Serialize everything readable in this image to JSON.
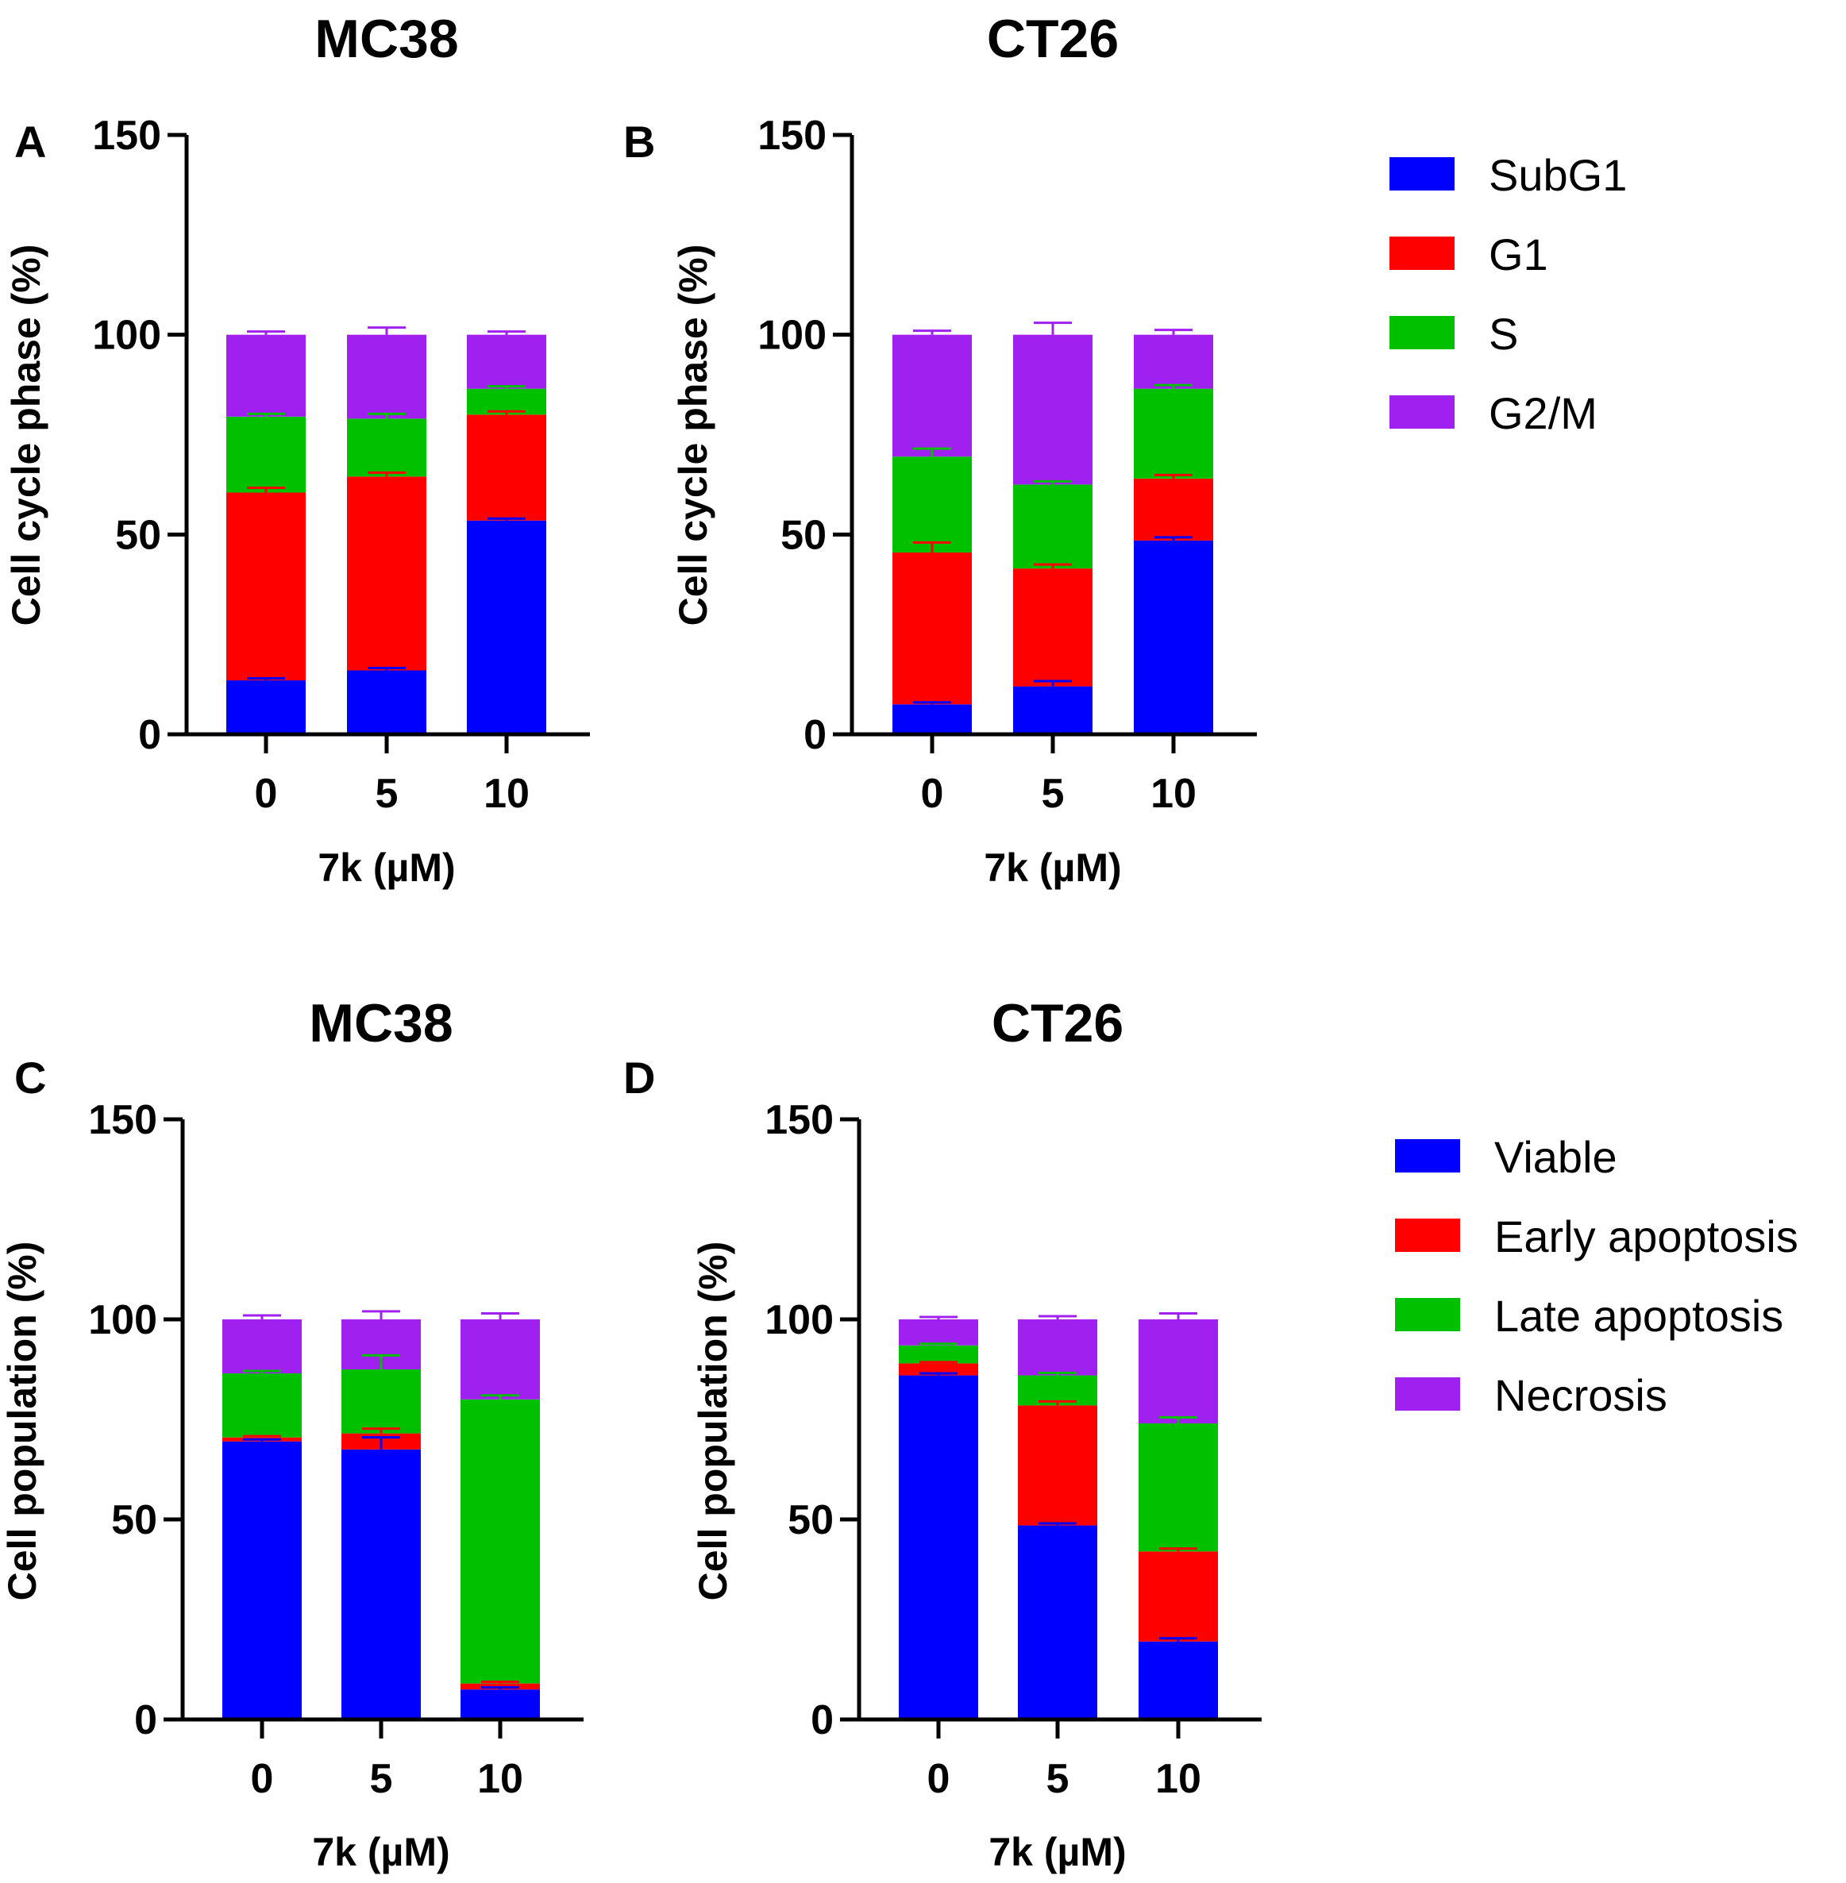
{
  "chart_data": [
    {
      "panel": "A",
      "type": "bar",
      "stacked": true,
      "title": "MC38",
      "xlabel": "7k (µM)",
      "ylabel": "Cell cycle phase (%)",
      "categories": [
        "0",
        "5",
        "10"
      ],
      "ylim": [
        0,
        150
      ],
      "yticks": [
        0,
        50,
        100,
        150
      ],
      "series": [
        {
          "name": "SubG1",
          "color": "#0000ff",
          "values": [
            13.5,
            16.0,
            53.5
          ],
          "errors": [
            0.5,
            0.6,
            0.5
          ]
        },
        {
          "name": "G1",
          "color": "#ff0000",
          "values": [
            47.0,
            48.5,
            26.5
          ],
          "errors": [
            1.2,
            1.0,
            0.8
          ]
        },
        {
          "name": "S",
          "color": "#00c000",
          "values": [
            19.0,
            14.5,
            6.5
          ],
          "errors": [
            0.7,
            1.2,
            0.6
          ]
        },
        {
          "name": "G2/M",
          "color": "#a020f0",
          "values": [
            20.5,
            21.0,
            13.5
          ],
          "errors": [
            0.8,
            1.8,
            0.8
          ]
        }
      ]
    },
    {
      "panel": "B",
      "type": "bar",
      "stacked": true,
      "title": "CT26",
      "xlabel": "7k (µM)",
      "ylabel": "Cell cycle phase (%)",
      "categories": [
        "0",
        "5",
        "10"
      ],
      "ylim": [
        0,
        150
      ],
      "yticks": [
        0,
        50,
        100,
        150
      ],
      "series": [
        {
          "name": "SubG1",
          "color": "#0000ff",
          "values": [
            7.5,
            12.0,
            48.5
          ],
          "errors": [
            0.5,
            1.3,
            0.8
          ]
        },
        {
          "name": "G1",
          "color": "#ff0000",
          "values": [
            38.0,
            29.5,
            15.5
          ],
          "errors": [
            2.5,
            1.0,
            0.9
          ]
        },
        {
          "name": "S",
          "color": "#00c000",
          "values": [
            24.0,
            21.0,
            22.5
          ],
          "errors": [
            2.0,
            0.8,
            0.9
          ]
        },
        {
          "name": "G2/M",
          "color": "#a020f0",
          "values": [
            30.5,
            37.5,
            13.5
          ],
          "errors": [
            1.0,
            3.0,
            1.2
          ]
        }
      ]
    },
    {
      "panel": "C",
      "type": "bar",
      "stacked": true,
      "title": "MC38",
      "xlabel": "7k (µM)",
      "ylabel": "Cell population (%)",
      "categories": [
        "0",
        "5",
        "10"
      ],
      "ylim": [
        0,
        150
      ],
      "yticks": [
        0,
        50,
        100,
        150
      ],
      "series": [
        {
          "name": "Viable",
          "color": "#0000ff",
          "values": [
            69.5,
            67.5,
            7.5
          ],
          "errors": [
            0.5,
            3.0,
            0.5
          ]
        },
        {
          "name": "Early apoptosis",
          "color": "#ff0000",
          "values": [
            1.0,
            4.0,
            1.5
          ],
          "errors": [
            0.3,
            1.2,
            0.4
          ]
        },
        {
          "name": "Late apoptosis",
          "color": "#00c000",
          "values": [
            16.0,
            16.0,
            71.0
          ],
          "errors": [
            0.6,
            3.5,
            1.0
          ]
        },
        {
          "name": "Necrosis",
          "color": "#a020f0",
          "values": [
            13.5,
            12.5,
            20.0
          ],
          "errors": [
            1.0,
            2.0,
            1.5
          ]
        }
      ]
    },
    {
      "panel": "D",
      "type": "bar",
      "stacked": true,
      "title": "CT26",
      "xlabel": "7k (µM)",
      "ylabel": "Cell population (%)",
      "categories": [
        "0",
        "5",
        "10"
      ],
      "ylim": [
        0,
        150
      ],
      "yticks": [
        0,
        50,
        100,
        150
      ],
      "series": [
        {
          "name": "Viable",
          "color": "#0000ff",
          "values": [
            86.0,
            48.5,
            19.5
          ],
          "errors": [
            0.5,
            0.5,
            0.8
          ]
        },
        {
          "name": "Early apoptosis",
          "color": "#ff0000",
          "values": [
            3.0,
            30.0,
            22.5
          ],
          "errors": [
            0.3,
            1.0,
            0.7
          ]
        },
        {
          "name": "Late apoptosis",
          "color": "#00c000",
          "values": [
            4.5,
            7.5,
            32.0
          ],
          "errors": [
            0.4,
            0.6,
            1.5
          ]
        },
        {
          "name": "Necrosis",
          "color": "#a020f0",
          "values": [
            6.5,
            14.0,
            26.0
          ],
          "errors": [
            0.6,
            0.8,
            1.5
          ]
        }
      ]
    }
  ],
  "legends": [
    {
      "items": [
        "SubG1",
        "G1",
        "S",
        "G2/M"
      ]
    },
    {
      "items": [
        "Viable",
        "Early apoptosis",
        "Late apoptosis",
        "Necrosis"
      ]
    }
  ]
}
